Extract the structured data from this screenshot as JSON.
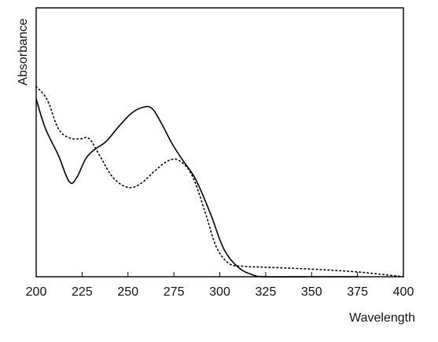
{
  "chart_data": {
    "type": "line",
    "title": "",
    "xlabel": "Wavelength",
    "ylabel": "Absorbance",
    "xlim": [
      200,
      400
    ],
    "ylim": [
      0,
      1
    ],
    "x_ticks": [
      200,
      225,
      250,
      275,
      300,
      325,
      350,
      375,
      400
    ],
    "grid": false,
    "legend": "none",
    "series": [
      {
        "style": "solid",
        "color": "#000000",
        "points": [
          [
            200,
            0.935
          ],
          [
            205,
            0.78
          ],
          [
            212,
            0.64
          ],
          [
            218,
            0.5
          ],
          [
            222,
            0.52
          ],
          [
            227,
            0.62
          ],
          [
            232,
            0.67
          ],
          [
            238,
            0.71
          ],
          [
            245,
            0.79
          ],
          [
            252,
            0.86
          ],
          [
            258,
            0.89
          ],
          [
            263,
            0.885
          ],
          [
            268,
            0.81
          ],
          [
            274,
            0.7
          ],
          [
            280,
            0.61
          ],
          [
            287,
            0.51
          ],
          [
            295,
            0.33
          ],
          [
            302,
            0.15
          ],
          [
            310,
            0.05
          ],
          [
            318,
            0.01
          ],
          [
            325,
            0.0
          ],
          [
            350,
            0.0
          ],
          [
            375,
            0.0
          ]
        ]
      },
      {
        "style": "dotted",
        "color": "#000000",
        "points": [
          [
            200,
            1.0
          ],
          [
            206,
            0.93
          ],
          [
            212,
            0.78
          ],
          [
            218,
            0.73
          ],
          [
            224,
            0.725
          ],
          [
            229,
            0.725
          ],
          [
            235,
            0.63
          ],
          [
            242,
            0.52
          ],
          [
            250,
            0.47
          ],
          [
            257,
            0.49
          ],
          [
            265,
            0.56
          ],
          [
            272,
            0.61
          ],
          [
            278,
            0.61
          ],
          [
            285,
            0.53
          ],
          [
            292,
            0.34
          ],
          [
            298,
            0.16
          ],
          [
            305,
            0.07
          ],
          [
            313,
            0.055
          ],
          [
            325,
            0.05
          ],
          [
            350,
            0.04
          ],
          [
            375,
            0.025
          ],
          [
            400,
            0.0
          ]
        ]
      }
    ]
  }
}
